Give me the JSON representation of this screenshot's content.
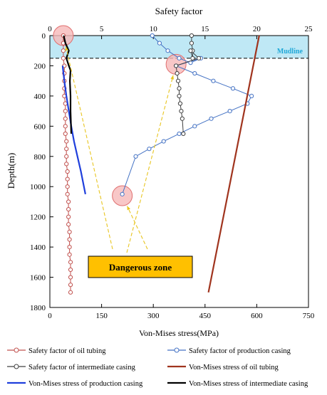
{
  "chart_data": {
    "type": "line",
    "title": "Safety factor",
    "xlabel_bottom": "Von-Mises stress(MPa)",
    "ylabel": "Depth(m)",
    "top_axis": {
      "min": 0,
      "max": 25,
      "ticks": [
        "0",
        "5",
        "10",
        "15",
        "20",
        "25"
      ]
    },
    "bottom_axis": {
      "min": 0,
      "max": 750,
      "ticks": [
        "0",
        "150",
        "300",
        "450",
        "600",
        "750"
      ]
    },
    "y_axis": {
      "min": 0,
      "max": 1800,
      "inverted": true,
      "ticks": [
        "0",
        "200",
        "400",
        "600",
        "800",
        "1000",
        "1200",
        "1400",
        "1600",
        "1800"
      ]
    },
    "mudline": {
      "label": "Mudline",
      "depth": 150,
      "color": "#bfe8f5"
    },
    "annotation": {
      "label": "Dangerous zone",
      "fill": "#ffc000",
      "circles": [
        {
          "x_sf": 1.3,
          "depth": 0
        },
        {
          "x_sf": 12.2,
          "depth": 190
        },
        {
          "x_sf": 7.0,
          "depth": 1060
        }
      ]
    },
    "series": [
      {
        "name": "Safety factor of oil tubing",
        "axis": "top",
        "color": "#c0504d",
        "marker": "circle",
        "x": [
          1.3,
          1.3,
          1.3,
          1.3,
          1.4,
          1.4,
          1.4,
          1.4,
          1.4,
          1.5,
          1.5,
          1.5,
          1.5,
          1.5,
          1.6,
          1.6,
          1.6,
          1.6,
          1.7,
          1.7,
          1.7,
          1.7,
          1.8,
          1.8,
          1.8,
          1.8,
          1.9,
          1.9,
          1.9,
          1.9,
          2.0,
          2.0,
          2.0,
          2.0,
          2.0
        ],
        "y": [
          0,
          50,
          100,
          150,
          200,
          250,
          300,
          350,
          400,
          450,
          500,
          550,
          600,
          650,
          700,
          750,
          800,
          850,
          900,
          950,
          1000,
          1050,
          1100,
          1150,
          1200,
          1250,
          1300,
          1350,
          1400,
          1450,
          1500,
          1550,
          1600,
          1650,
          1700
        ]
      },
      {
        "name": "Safety factor of production casing",
        "axis": "top",
        "color": "#4472c4",
        "marker": "circle",
        "x": [
          9.9,
          10.6,
          11.4,
          12.5,
          13.6,
          14.6,
          12.2,
          14.0,
          15.8,
          17.7,
          19.5,
          19.1,
          17.4,
          15.6,
          14.0,
          12.5,
          11.0,
          9.6,
          8.3,
          7.0
        ],
        "y": [
          0,
          50,
          100,
          150,
          180,
          150,
          200,
          250,
          300,
          350,
          400,
          450,
          500,
          550,
          600,
          650,
          700,
          750,
          800,
          1050
        ]
      },
      {
        "name": "Safety factor of intermediate casing",
        "axis": "top",
        "color": "#404040",
        "marker": "circle",
        "x": [
          13.7,
          13.7,
          13.8,
          13.8,
          13.6,
          14.4,
          12.2,
          12.3,
          12.4,
          12.5,
          12.5,
          12.6,
          12.7,
          12.8,
          12.9
        ],
        "y": [
          0,
          50,
          100,
          150,
          100,
          150,
          200,
          250,
          300,
          350,
          400,
          450,
          500,
          550,
          650
        ]
      },
      {
        "name": "Von-Mises stress of oil tubing",
        "axis": "bottom",
        "color": "#a0341e",
        "marker": "none",
        "x": [
          607,
          460
        ],
        "y": [
          0,
          1700
        ]
      },
      {
        "name": "Von-Mises stress of production casing",
        "axis": "bottom",
        "color": "#1f3fdc",
        "marker": "none",
        "x": [
          37,
          42,
          48,
          55,
          62,
          70,
          80,
          90,
          103
        ],
        "y": [
          200,
          300,
          400,
          500,
          600,
          700,
          800,
          900,
          1050
        ]
      },
      {
        "name": "Von-Mises stress of intermediate casing",
        "axis": "bottom",
        "color": "#000000",
        "marker": "none",
        "x": [
          40,
          45,
          55,
          48,
          55,
          60,
          58,
          60,
          60,
          62
        ],
        "y": [
          0,
          50,
          100,
          150,
          200,
          230,
          300,
          400,
          500,
          650
        ]
      }
    ],
    "legend_rows": [
      [
        "Safety factor of oil tubing",
        "Safety factor of production casing"
      ],
      [
        "Safety factor of intermediate casing",
        "Von-Mises stress of oil tubing"
      ],
      [
        "Von-Mises stress of production casing",
        "Von-Mises stress of intermediate casing"
      ]
    ]
  }
}
